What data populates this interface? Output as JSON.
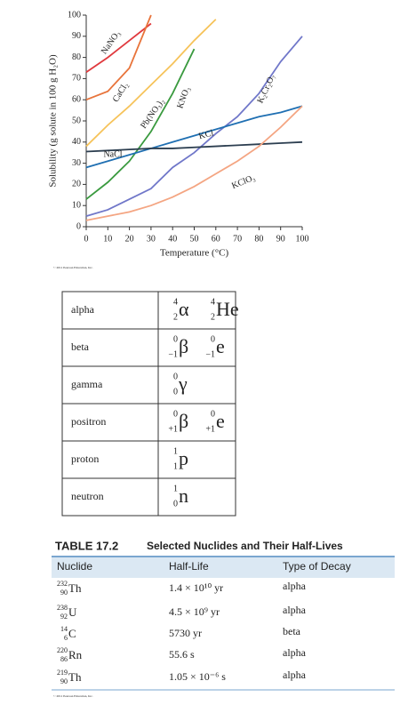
{
  "chart_data": {
    "type": "line",
    "xlabel": "Temperature (°C)",
    "ylabel": "Solubility (g solute in 100 g H₂O)",
    "credit": "© 2011 Pearson Education, Inc.",
    "x": [
      0,
      10,
      20,
      30,
      40,
      50,
      60,
      70,
      80,
      90,
      100
    ],
    "xlim": [
      0,
      100
    ],
    "ylim": [
      0,
      100
    ],
    "xticks": [
      0,
      10,
      20,
      30,
      40,
      50,
      60,
      70,
      80,
      90,
      100
    ],
    "yticks": [
      0,
      10,
      20,
      30,
      40,
      50,
      60,
      70,
      80,
      90,
      100
    ],
    "grid": false,
    "series": [
      {
        "name": "NaNO₃",
        "color": "#e0393e",
        "values": [
          73,
          80,
          88,
          96,
          null,
          null,
          null,
          null,
          null,
          null,
          null
        ]
      },
      {
        "name": "CaCl₂",
        "color": "#e8743b",
        "values": [
          60,
          64,
          75,
          100,
          null,
          null,
          null,
          null,
          null,
          null,
          null
        ]
      },
      {
        "name": "Pb(NO₃)₂",
        "color": "#f6c35a",
        "values": [
          38,
          48,
          57,
          67,
          77,
          88,
          98,
          null,
          null,
          null,
          null
        ]
      },
      {
        "name": "KNO₃",
        "color": "#3a9a3f",
        "values": [
          13,
          21,
          31,
          45,
          63,
          84,
          null,
          null,
          null,
          null,
          null
        ]
      },
      {
        "name": "K₂Cr₂O₇",
        "color": "#7077c9",
        "values": [
          5,
          8,
          13,
          18,
          28,
          35,
          44,
          52,
          63,
          78,
          90
        ]
      },
      {
        "name": "KCl",
        "color": "#1f6fb2",
        "values": [
          28,
          31,
          34,
          37,
          40,
          43,
          46,
          49,
          52,
          54,
          57
        ]
      },
      {
        "name": "NaCl",
        "color": "#2c3e50",
        "values": [
          35.5,
          36,
          36.5,
          37,
          37,
          37.5,
          38,
          38.5,
          39,
          39.5,
          40
        ]
      },
      {
        "name": "KClO₃",
        "color": "#f4a582",
        "values": [
          3,
          5,
          7,
          10,
          14,
          19,
          25,
          31,
          38,
          47,
          57
        ]
      }
    ]
  },
  "particles_table": {
    "rows": [
      {
        "name": "alpha",
        "notations": [
          {
            "mass": "4",
            "atomic": "2",
            "symbol": "α"
          },
          {
            "mass": "4",
            "atomic": "2",
            "symbol": "He"
          }
        ]
      },
      {
        "name": "beta",
        "notations": [
          {
            "mass": "0",
            "atomic": "−1",
            "symbol": "β"
          },
          {
            "mass": "0",
            "atomic": "−1",
            "symbol": "e"
          }
        ]
      },
      {
        "name": "gamma",
        "notations": [
          {
            "mass": "0",
            "atomic": "0",
            "symbol": "γ"
          }
        ]
      },
      {
        "name": "positron",
        "notations": [
          {
            "mass": "0",
            "atomic": "+1",
            "symbol": "β"
          },
          {
            "mass": "0",
            "atomic": "+1",
            "symbol": "e"
          }
        ]
      },
      {
        "name": "proton",
        "notations": [
          {
            "mass": "1",
            "atomic": "1",
            "symbol": "p"
          }
        ]
      },
      {
        "name": "neutron",
        "notations": [
          {
            "mass": "1",
            "atomic": "0",
            "symbol": "n"
          }
        ]
      }
    ]
  },
  "nuclides_table": {
    "label": "TABLE 17.2",
    "title": "Selected Nuclides and Their Half-Lives",
    "header": [
      "Nuclide",
      "Half-Life",
      "Type of Decay"
    ],
    "rows": [
      {
        "nuclide": {
          "mass": "232",
          "atomic": "90",
          "symbol": "Th"
        },
        "half_life": "1.4 × 10¹⁰ yr",
        "decay": "alpha"
      },
      {
        "nuclide": {
          "mass": "238",
          "atomic": "92",
          "symbol": "U"
        },
        "half_life": "4.5 × 10⁹ yr",
        "decay": "alpha"
      },
      {
        "nuclide": {
          "mass": "14",
          "atomic": "6",
          "symbol": "C"
        },
        "half_life": "5730 yr",
        "decay": "beta"
      },
      {
        "nuclide": {
          "mass": "220",
          "atomic": "86",
          "symbol": "Rn"
        },
        "half_life": "55.6 s",
        "decay": "alpha"
      },
      {
        "nuclide": {
          "mass": "219",
          "atomic": "90",
          "symbol": "Th"
        },
        "half_life": "1.05 × 10⁻⁶ s",
        "decay": "alpha"
      }
    ],
    "credit": "© 2011 Pearson Education, Inc."
  }
}
